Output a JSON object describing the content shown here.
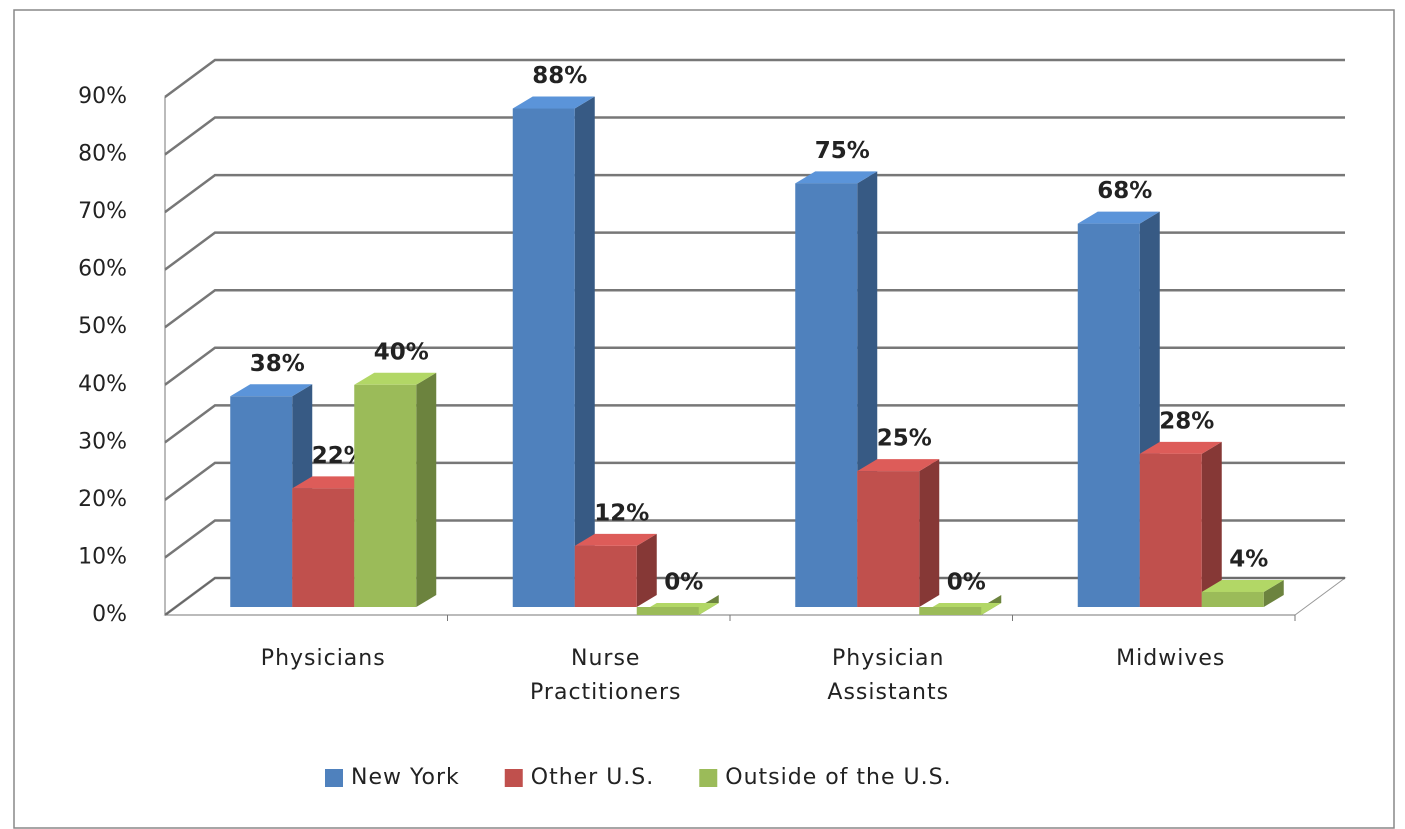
{
  "chart_data": {
    "type": "bar3d",
    "categories": [
      "Physicians",
      "Nurse Practitioners",
      "Physician Assistants",
      "Midwives"
    ],
    "series": [
      {
        "name": "New York",
        "color": "#4f81bd",
        "values": [
          38,
          88,
          75,
          68
        ],
        "value_labels": [
          "38%",
          "88%",
          "75%",
          "68%"
        ]
      },
      {
        "name": "Other U.S.",
        "color": "#c0504d",
        "values": [
          22,
          12,
          25,
          28
        ],
        "value_labels": [
          "22%",
          "12%",
          "25%",
          "28%"
        ]
      },
      {
        "name": "Outside of the U.S.",
        "color": "#9bbb59",
        "values": [
          40,
          0,
          0,
          4
        ],
        "value_labels": [
          "40%",
          "0%",
          "0%",
          "4%"
        ]
      }
    ],
    "ylim": [
      0,
      90
    ],
    "yticks": [
      {
        "value": 0,
        "label": "0%"
      },
      {
        "value": 10,
        "label": "10%"
      },
      {
        "value": 20,
        "label": "20%"
      },
      {
        "value": 30,
        "label": "30%"
      },
      {
        "value": 40,
        "label": "40%"
      },
      {
        "value": 50,
        "label": "50%"
      },
      {
        "value": 60,
        "label": "60%"
      },
      {
        "value": 70,
        "label": "70%"
      },
      {
        "value": 80,
        "label": "80%"
      },
      {
        "value": 90,
        "label": "90%"
      }
    ],
    "grid": true,
    "legend": "bottom"
  }
}
